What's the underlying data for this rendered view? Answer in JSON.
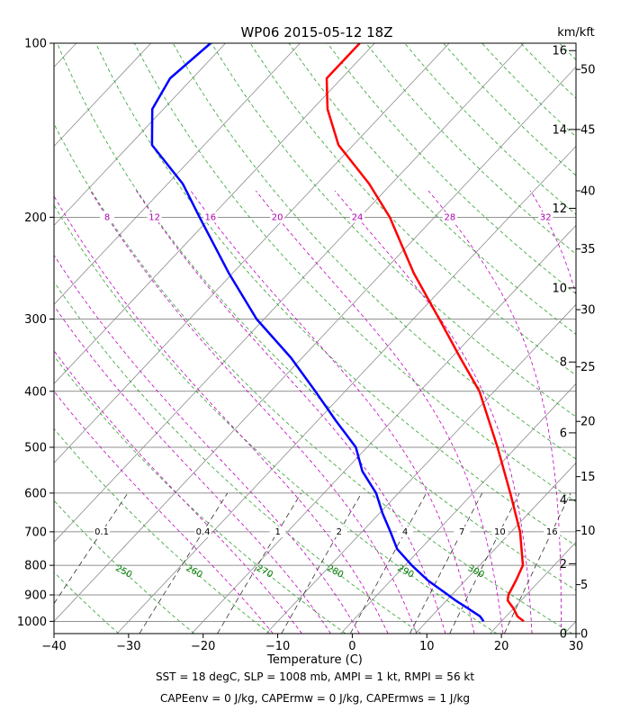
{
  "chart_data": {
    "type": "line",
    "title": "WP06 2015-05-12 18Z",
    "xlabel": "Temperature (C)",
    "ylabel": "",
    "xlim": [
      -40,
      30
    ],
    "ylim": [
      1050,
      100
    ],
    "y_scale": "log",
    "skew_deg_per_decade": 73,
    "grid": true,
    "x_ticks": [
      -40,
      -30,
      -20,
      -10,
      0,
      10,
      20,
      30
    ],
    "x_tick_labels": [
      "−40",
      "−30",
      "−20",
      "−10",
      "0",
      "10",
      "20",
      "30"
    ],
    "pressure_ticks": [
      100,
      200,
      300,
      400,
      500,
      600,
      700,
      800,
      900,
      1000
    ],
    "pressure_tick_labels": [
      "100",
      "200",
      "300",
      "400",
      "500",
      "600",
      "700",
      "800",
      "900",
      "1000"
    ],
    "right_axis": {
      "label": "km/kft",
      "km_ticks": [
        {
          "value": "0",
          "p": 1050
        },
        {
          "value": "2",
          "p": 795
        },
        {
          "value": "4",
          "p": 617
        },
        {
          "value": "6",
          "p": 472
        },
        {
          "value": "8",
          "p": 356
        },
        {
          "value": "10",
          "p": 265
        },
        {
          "value": "12",
          "p": 193
        },
        {
          "value": "14",
          "p": 141
        },
        {
          "value": "16",
          "p": 103
        }
      ],
      "kft_ticks": [
        {
          "value": "0",
          "p": 1050
        },
        {
          "value": "5",
          "p": 864
        },
        {
          "value": "10",
          "p": 697
        },
        {
          "value": "15",
          "p": 562
        },
        {
          "value": "20",
          "p": 451
        },
        {
          "value": "25",
          "p": 363
        },
        {
          "value": "30",
          "p": 289
        },
        {
          "value": "35",
          "p": 227
        },
        {
          "value": "40",
          "p": 180
        },
        {
          "value": "45",
          "p": 141
        },
        {
          "value": "50",
          "p": 111
        }
      ]
    },
    "dry_adiabat_labels": [
      {
        "label": "250",
        "theta": 250
      },
      {
        "label": "260",
        "theta": 260
      },
      {
        "label": "270",
        "theta": 270
      },
      {
        "label": "280",
        "theta": 280
      },
      {
        "label": "290",
        "theta": 290
      },
      {
        "label": "300",
        "theta": 300
      }
    ],
    "mixing_ratio_labels": [
      {
        "label": "0.1",
        "w": 0.1
      },
      {
        "label": "0.4",
        "w": 0.4
      },
      {
        "label": "1",
        "w": 1
      },
      {
        "label": "2",
        "w": 2
      },
      {
        "label": "4",
        "w": 4
      },
      {
        "label": "7",
        "w": 7
      },
      {
        "label": "10",
        "w": 10
      },
      {
        "label": "16",
        "w": 16
      }
    ],
    "moist_adiabat_labels": [
      {
        "label": "8",
        "t": 8
      },
      {
        "label": "12",
        "t": 12
      },
      {
        "label": "16",
        "t": 16
      },
      {
        "label": "20",
        "t": 20
      },
      {
        "label": "24",
        "t": 24
      },
      {
        "label": "28",
        "t": 28
      },
      {
        "label": "32",
        "t": 32
      }
    ],
    "series": [
      {
        "name": "Temperature",
        "color": "#ff0000",
        "p": [
          1000,
          980,
          950,
          920,
          900,
          850,
          800,
          700,
          600,
          500,
          400,
          350,
          300,
          250,
          200,
          175,
          150,
          130,
          115,
          100
        ],
        "t": [
          23,
          21.5,
          20,
          18.2,
          17.6,
          16.8,
          15.8,
          11.2,
          5.0,
          -2.5,
          -12,
          -18.8,
          -26.5,
          -35.7,
          -46,
          -53,
          -62,
          -68,
          -72,
          -72
        ]
      },
      {
        "name": "Dewpoint",
        "color": "#0000ff",
        "p": [
          1000,
          980,
          950,
          920,
          900,
          850,
          800,
          750,
          700,
          650,
          600,
          550,
          500,
          450,
          400,
          350,
          300,
          250,
          200,
          175,
          150,
          130,
          115,
          100
        ],
        "t": [
          17.6,
          16.5,
          13.9,
          11.2,
          9.5,
          5.0,
          0.9,
          -3.1,
          -6.2,
          -9.6,
          -13,
          -17.6,
          -21.5,
          -27.5,
          -34,
          -41.5,
          -51,
          -60.5,
          -71.5,
          -78,
          -87,
          -91.5,
          -93,
          -92
        ]
      }
    ]
  },
  "footer": {
    "line1": "SST = 18 degC, SLP = 1008 mb, AMPI = 1 kt, RMPI = 56 kt",
    "line2": "CAPEenv = 0 J/kg, CAPErmw = 0 J/kg, CAPErmws = 1 J/kg"
  }
}
